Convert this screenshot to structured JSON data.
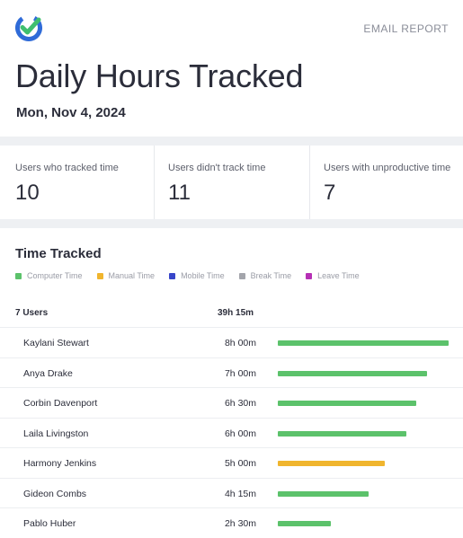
{
  "header": {
    "email_report": "EMAIL REPORT",
    "title": "Daily Hours Tracked",
    "date": "Mon, Nov 4, 2024",
    "logo_icon": "check-badge-icon",
    "logo_colors": [
      "#2f6bd8",
      "#3fbf6f"
    ]
  },
  "stats": [
    {
      "label": "Users who tracked time",
      "value": "10"
    },
    {
      "label": "Users didn't track time",
      "value": "11"
    },
    {
      "label": "Users with unproductive time",
      "value": "7"
    }
  ],
  "time_tracked": {
    "title": "Time Tracked",
    "legend": [
      {
        "label": "Computer Time",
        "color": "#5cc26b"
      },
      {
        "label": "Manual Time",
        "color": "#f0b52e"
      },
      {
        "label": "Mobile Time",
        "color": "#3846c9"
      },
      {
        "label": "Break Time",
        "color": "#a3a5ab"
      },
      {
        "label": "Leave Time",
        "color": "#b630b5"
      }
    ],
    "header": {
      "users": "7 Users",
      "total": "39h 15m"
    },
    "max_hours": 8,
    "rows": [
      {
        "name": "Kaylani Stewart",
        "duration": "8h 00m",
        "hours": 8.0,
        "type": "Computer Time"
      },
      {
        "name": "Anya Drake",
        "duration": "7h 00m",
        "hours": 7.0,
        "type": "Computer Time"
      },
      {
        "name": "Corbin Davenport",
        "duration": "6h 30m",
        "hours": 6.5,
        "type": "Computer Time"
      },
      {
        "name": "Laila Livingston",
        "duration": "6h 00m",
        "hours": 6.0,
        "type": "Computer Time"
      },
      {
        "name": "Harmony Jenkins",
        "duration": "5h 00m",
        "hours": 5.0,
        "type": "Manual Time"
      },
      {
        "name": "Gideon Combs",
        "duration": "4h 15m",
        "hours": 4.25,
        "type": "Computer Time"
      },
      {
        "name": "Pablo Huber",
        "duration": "2h 30m",
        "hours": 2.5,
        "type": "Computer Time"
      }
    ]
  }
}
